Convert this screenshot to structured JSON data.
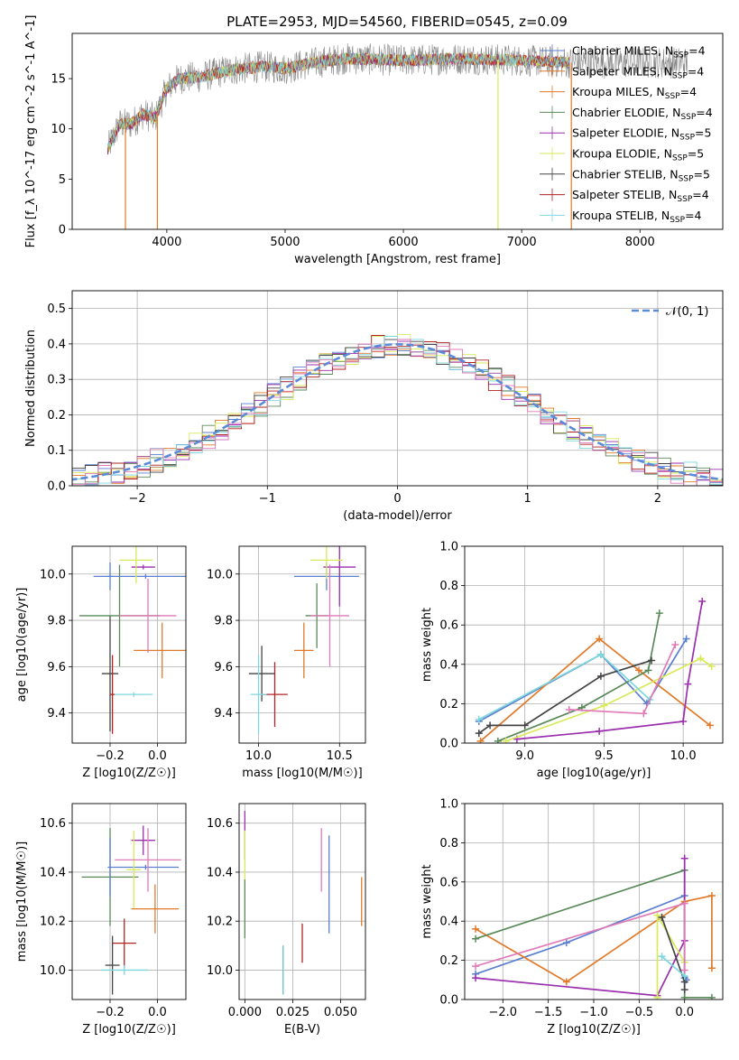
{
  "figure": {
    "title": "PLATE=2953, MJD=54560, FIBERID=0545, z=0.09"
  },
  "colors": {
    "Chabrier MILES": "#5b7fcf",
    "Salpeter MILES": "#e07a2a",
    "Kroupa MILES": "#e07a2a",
    "Chabrier ELODIE": "#5a8a5a",
    "Salpeter ELODIE": "#9b2fae",
    "Kroupa ELODIE": "#d8ea5a",
    "Chabrier STELIB": "#444444",
    "Salpeter STELIB": "#b22222",
    "Kroupa STELIB": "#7dd7df",
    "gaussian": "#5b8ad6",
    "pink": "#e07ab8",
    "gray": "#888888"
  },
  "chart_data": [
    {
      "id": "spectrum",
      "type": "line",
      "title": "PLATE=2953, MJD=54560, FIBERID=0545, z=0.09",
      "xlabel": "wavelength [Angstrom, rest frame]",
      "ylabel": "Flux [f_λ 10^-17 erg cm^-2 s^-1 A^-1]",
      "xlim": [
        3200,
        8700
      ],
      "ylim": [
        0,
        19.5
      ],
      "xticks": [
        "4000",
        "5000",
        "6000",
        "7000",
        "8000"
      ],
      "yticks": [
        "0",
        "5",
        "10",
        "15"
      ],
      "legend_position": "top-right",
      "legend": [
        {
          "label": "Chabrier MILES, N_SSP=4",
          "color": "#5b7fcf"
        },
        {
          "label": "Salpeter MILES, N_SSP=4",
          "color": "#e07a2a"
        },
        {
          "label": "Kroupa MILES, N_SSP=4",
          "color": "#e07a2a"
        },
        {
          "label": "Chabrier ELODIE, N_SSP=4",
          "color": "#5a8a5a"
        },
        {
          "label": "Salpeter ELODIE, N_SSP=5",
          "color": "#9b2fae"
        },
        {
          "label": "Kroupa ELODIE, N_SSP=5",
          "color": "#d8ea5a"
        },
        {
          "label": "Chabrier STELIB, N_SSP=5",
          "color": "#444444"
        },
        {
          "label": "Salpeter STELIB, N_SSP=4",
          "color": "#b22222"
        },
        {
          "label": "Kroupa STELIB, N_SSP=4",
          "color": "#7dd7df"
        }
      ],
      "continuum": [
        [
          3500,
          8.0
        ],
        [
          3600,
          10.5
        ],
        [
          3700,
          10.5
        ],
        [
          3800,
          11.5
        ],
        [
          3900,
          11.0
        ],
        [
          4000,
          14.0
        ],
        [
          4100,
          15.0
        ],
        [
          4300,
          15.2
        ],
        [
          4500,
          15.8
        ],
        [
          4800,
          16.2
        ],
        [
          5000,
          16.0
        ],
        [
          5200,
          16.5
        ],
        [
          5500,
          17.0
        ],
        [
          6000,
          16.8
        ],
        [
          6500,
          17.0
        ],
        [
          7000,
          16.8
        ],
        [
          7400,
          16.6
        ]
      ],
      "dropouts": [
        [
          3650,
          0
        ],
        [
          3920,
          0
        ],
        [
          6800,
          0
        ],
        [
          7420,
          0
        ]
      ]
    },
    {
      "id": "residuals",
      "type": "line",
      "xlabel": "(data-model)/error",
      "ylabel": "Normed distribution",
      "xlim": [
        -2.5,
        2.5
      ],
      "ylim": [
        0,
        0.55
      ],
      "xticks": [
        "−2",
        "−1",
        "0",
        "1",
        "2"
      ],
      "yticks": [
        "0.0",
        "0.1",
        "0.2",
        "0.3",
        "0.4",
        "0.5"
      ],
      "legend": [
        {
          "label": "𝒩(0, 1)",
          "color": "#5b8ad6",
          "style": "dashed"
        }
      ],
      "gaussian": {
        "mean": 0,
        "sigma": 1
      }
    },
    {
      "id": "age-vs-Z",
      "type": "scatter",
      "xlabel": "Z [log10(Z/Z☉)]",
      "ylabel": "age [log10(age/yr)]",
      "xlim": [
        -0.36,
        0.12
      ],
      "ylim": [
        9.27,
        10.12
      ],
      "xticks": [
        "−0.2",
        "0.0"
      ],
      "yticks": [
        "9.4",
        "9.6",
        "9.8",
        "10.0"
      ],
      "points": [
        {
          "x": -0.2,
          "y": 9.57,
          "xerr": 0.035,
          "yerr": 0.25,
          "color": "#444444"
        },
        {
          "x": -0.19,
          "y": 9.48,
          "xerr": 0.01,
          "yerr": 0.17,
          "color": "#b22222"
        },
        {
          "x": -0.1,
          "y": 9.48,
          "xerr": 0.08,
          "yerr": 0.01,
          "color": "#7dd7df"
        },
        {
          "x": -0.16,
          "y": 9.82,
          "xerr": 0.17,
          "yerr": 0.22,
          "color": "#5a8a5a"
        },
        {
          "x": -0.2,
          "y": 9.99,
          "xerr": 0.01,
          "yerr": 0.06,
          "color": "#5b7fcf"
        },
        {
          "x": -0.05,
          "y": 9.99,
          "xerr": 0.22,
          "yerr": 0.01,
          "color": "#5b7fcf"
        },
        {
          "x": -0.06,
          "y": 10.03,
          "xerr": 0.05,
          "yerr": 0.01,
          "color": "#9b2fae"
        },
        {
          "x": -0.09,
          "y": 10.06,
          "xerr": 0.07,
          "yerr": 0.1,
          "color": "#d8ea5a"
        },
        {
          "x": 0.02,
          "y": 9.67,
          "xerr": 0.12,
          "yerr": 0.12,
          "color": "#e07a2a"
        },
        {
          "x": -0.04,
          "y": 9.82,
          "xerr": 0.12,
          "yerr": 0.16,
          "color": "#e07ab8"
        }
      ]
    },
    {
      "id": "age-vs-mass",
      "type": "scatter",
      "xlabel": "mass [log10(M/M☉)]",
      "ylabel": "",
      "xlim": [
        9.88,
        10.66
      ],
      "ylim": [
        9.27,
        10.12
      ],
      "xticks": [
        "10.0",
        "10.5"
      ],
      "yticks": [
        "9.4",
        "9.6",
        "9.8",
        "10.0"
      ],
      "points": [
        {
          "x": 10.02,
          "y": 9.57,
          "xerr": 0.08,
          "yerr": 0.12,
          "color": "#444444"
        },
        {
          "x": 10.1,
          "y": 9.48,
          "xerr": 0.08,
          "yerr": 0.14,
          "color": "#b22222"
        },
        {
          "x": 10.0,
          "y": 9.48,
          "xerr": 0.05,
          "yerr": 0.17,
          "color": "#7dd7df"
        },
        {
          "x": 10.36,
          "y": 9.82,
          "xerr": 0.07,
          "yerr": 0.14,
          "color": "#5a8a5a"
        },
        {
          "x": 10.42,
          "y": 9.99,
          "xerr": 0.2,
          "yerr": 0.06,
          "color": "#5b7fcf"
        },
        {
          "x": 10.5,
          "y": 10.03,
          "xerr": 0.1,
          "yerr": 0.17,
          "color": "#9b2fae"
        },
        {
          "x": 10.42,
          "y": 10.06,
          "xerr": 0.1,
          "yerr": 0.08,
          "color": "#d8ea5a"
        },
        {
          "x": 10.28,
          "y": 9.67,
          "xerr": 0.06,
          "yerr": 0.12,
          "color": "#e07a2a"
        },
        {
          "x": 10.44,
          "y": 9.82,
          "xerr": 0.12,
          "yerr": 0.22,
          "color": "#e07ab8"
        }
      ]
    },
    {
      "id": "massweight-vs-age",
      "type": "line",
      "xlabel": "age [log10(age/yr)]",
      "ylabel": "mass weight",
      "xlim": [
        8.62,
        10.25
      ],
      "ylim": [
        0,
        1.0
      ],
      "xticks": [
        "9.0",
        "9.5",
        "10.0"
      ],
      "yticks": [
        "0.0",
        "0.2",
        "0.4",
        "0.6",
        "0.8",
        "1.0"
      ],
      "series": [
        {
          "color": "#5b7fcf",
          "x": [
            8.71,
            9.48,
            9.77,
            10.02
          ],
          "y": [
            0.11,
            0.45,
            0.2,
            0.53
          ]
        },
        {
          "color": "#e07a2a",
          "x": [
            8.72,
            9.47,
            9.72,
            10.17
          ],
          "y": [
            0.01,
            0.53,
            0.37,
            0.09
          ]
        },
        {
          "color": "#5a8a5a",
          "x": [
            8.83,
            9.36,
            9.78,
            9.85
          ],
          "y": [
            0.01,
            0.18,
            0.37,
            0.66
          ]
        },
        {
          "color": "#9b2fae",
          "x": [
            8.95,
            9.47,
            10.0,
            10.03,
            10.12
          ],
          "y": [
            0.02,
            0.06,
            0.11,
            0.3,
            0.72
          ]
        },
        {
          "color": "#d8ea5a",
          "x": [
            8.88,
            9.5,
            10.11,
            10.18
          ],
          "y": [
            0.01,
            0.19,
            0.43,
            0.39
          ]
        },
        {
          "color": "#444444",
          "x": [
            8.71,
            8.78,
            9.0,
            9.48,
            9.8
          ],
          "y": [
            0.05,
            0.09,
            0.09,
            0.34,
            0.42
          ]
        },
        {
          "color": "#7dd7df",
          "x": [
            8.71,
            9.48,
            9.79
          ],
          "y": [
            0.12,
            0.45,
            0.22
          ]
        },
        {
          "color": "#e07ab8",
          "x": [
            9.28,
            9.75,
            9.95
          ],
          "y": [
            0.17,
            0.15,
            0.5
          ]
        }
      ]
    },
    {
      "id": "mass-vs-Z",
      "type": "scatter",
      "xlabel": "Z [log10(Z/Z☉)]",
      "ylabel": "mass [log10(M/M☉)]",
      "xlim": [
        -0.36,
        0.12
      ],
      "ylim": [
        9.88,
        10.68
      ],
      "xticks": [
        "−0.2",
        "0.0"
      ],
      "yticks": [
        "10.0",
        "10.2",
        "10.4",
        "10.6"
      ],
      "points": [
        {
          "x": -0.19,
          "y": 10.02,
          "xerr": 0.03,
          "yerr": 0.12,
          "color": "#444444"
        },
        {
          "x": -0.14,
          "y": 10.11,
          "xerr": 0.05,
          "yerr": 0.1,
          "color": "#b22222"
        },
        {
          "x": -0.14,
          "y": 10.0,
          "xerr": 0.1,
          "yerr": 0.02,
          "color": "#7dd7df"
        },
        {
          "x": -0.2,
          "y": 10.38,
          "xerr": 0.12,
          "yerr": 0.2,
          "color": "#5a8a5a"
        },
        {
          "x": -0.2,
          "y": 10.42,
          "xerr": 0.01,
          "yerr": 0.12,
          "color": "#5b7fcf"
        },
        {
          "x": -0.05,
          "y": 10.42,
          "xerr": 0.14,
          "yerr": 0.01,
          "color": "#5b7fcf"
        },
        {
          "x": -0.06,
          "y": 10.53,
          "xerr": 0.05,
          "yerr": 0.06,
          "color": "#9b2fae"
        },
        {
          "x": -0.1,
          "y": 10.41,
          "xerr": 0.03,
          "yerr": 0.16,
          "color": "#d8ea5a"
        },
        {
          "x": -0.04,
          "y": 10.45,
          "xerr": 0.14,
          "yerr": 0.13,
          "color": "#e07ab8"
        },
        {
          "x": -0.01,
          "y": 10.25,
          "xerr": 0.1,
          "yerr": 0.1,
          "color": "#e07a2a"
        }
      ]
    },
    {
      "id": "mass-vs-EBV",
      "type": "scatter",
      "xlabel": "E(B-V)",
      "ylabel": "",
      "xlim": [
        -0.003,
        0.063
      ],
      "ylim": [
        9.88,
        10.68
      ],
      "xticks": [
        "0.000",
        "0.025",
        "0.050"
      ],
      "yticks": [
        "10.0",
        "10.2",
        "10.4",
        "10.6"
      ],
      "points": [
        {
          "x": 0.0,
          "y": 10.55,
          "yerr": 0.1,
          "color": "#9b2fae"
        },
        {
          "x": 0.0,
          "y": 10.35,
          "yerr": 0.22,
          "color": "#d8ea5a"
        },
        {
          "x": 0.0,
          "y": 10.25,
          "yerr": 0.12,
          "color": "#5a8a5a"
        },
        {
          "x": 0.02,
          "y": 10.0,
          "yerr": 0.1,
          "color": "#444444"
        },
        {
          "x": 0.02,
          "y": 10.0,
          "yerr": 0.1,
          "color": "#7dd7df"
        },
        {
          "x": 0.03,
          "y": 10.11,
          "yerr": 0.08,
          "color": "#b22222"
        },
        {
          "x": 0.04,
          "y": 10.45,
          "yerr": 0.13,
          "color": "#e07ab8"
        },
        {
          "x": 0.044,
          "y": 10.35,
          "yerr": 0.2,
          "color": "#5b7fcf"
        },
        {
          "x": 0.061,
          "y": 10.28,
          "yerr": 0.1,
          "color": "#e07a2a"
        }
      ]
    },
    {
      "id": "massweight-vs-Z",
      "type": "line",
      "xlabel": "Z [log10(Z/Z☉)]",
      "ylabel": "mass weight",
      "xlim": [
        -2.42,
        0.42
      ],
      "ylim": [
        0,
        1.0
      ],
      "xticks": [
        "−2.0",
        "−1.5",
        "−1.0",
        "−0.5",
        "0.0"
      ],
      "yticks": [
        "0.0",
        "0.2",
        "0.4",
        "0.6",
        "0.8",
        "1.0"
      ],
      "series": [
        {
          "color": "#5b7fcf",
          "x": [
            -2.3,
            -1.3,
            0.0,
            0.0,
            0.02
          ],
          "y": [
            0.13,
            0.29,
            0.53,
            0.11,
            0.1
          ]
        },
        {
          "color": "#e07a2a",
          "x": [
            -2.3,
            -1.3,
            0.0,
            0.3,
            0.3
          ],
          "y": [
            0.36,
            0.09,
            0.5,
            0.53,
            0.16
          ]
        },
        {
          "color": "#5a8a5a",
          "x": [
            -2.3,
            0.0,
            0.0,
            0.3
          ],
          "y": [
            0.31,
            0.66,
            0.01,
            0.01
          ]
        },
        {
          "color": "#9b2fae",
          "x": [
            -2.3,
            -0.3,
            0.0,
            0.0
          ],
          "y": [
            0.11,
            0.02,
            0.3,
            0.72
          ]
        },
        {
          "color": "#d8ea5a",
          "x": [
            -0.3,
            -0.3,
            0.0
          ],
          "y": [
            0.01,
            0.43,
            0.19
          ]
        },
        {
          "color": "#444444",
          "x": [
            -0.25,
            0.0,
            0.0
          ],
          "y": [
            0.42,
            0.09,
            0.05
          ]
        },
        {
          "color": "#7dd7df",
          "x": [
            -0.25,
            0.0
          ],
          "y": [
            0.22,
            0.12
          ]
        },
        {
          "color": "#e07ab8",
          "x": [
            -2.3,
            0.0,
            0.0
          ],
          "y": [
            0.17,
            0.49,
            0.15
          ]
        }
      ]
    }
  ]
}
